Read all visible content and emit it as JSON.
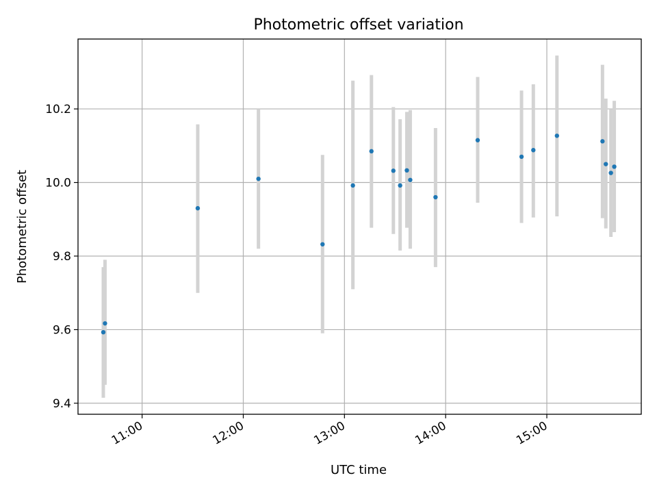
{
  "chart_data": {
    "type": "scatter",
    "title": "Photometric offset variation",
    "xlabel": "UTC time",
    "ylabel": "Photometric offset",
    "xlim": [
      "10:22",
      "15:56"
    ],
    "ylim": [
      9.37,
      10.39
    ],
    "grid": true,
    "x_ticks": [
      "11:00",
      "12:00",
      "13:00",
      "14:00",
      "15:00"
    ],
    "y_ticks": [
      9.4,
      9.6,
      9.8,
      10.0,
      10.2
    ],
    "y_tick_labels": [
      "9.4",
      "9.6",
      "9.8",
      "10.0",
      "10.2"
    ],
    "colors": {
      "point": "#1f77b4",
      "errorbar": "#d3d3d3",
      "grid": "#b0b0b0",
      "axes": "#000000"
    },
    "points": [
      {
        "x": "10:37",
        "y": 9.593,
        "ylow": 9.415,
        "yhigh": 9.77
      },
      {
        "x": "10:38",
        "y": 9.617,
        "ylow": 9.45,
        "yhigh": 9.79
      },
      {
        "x": "11:33",
        "y": 9.93,
        "ylow": 9.7,
        "yhigh": 10.158
      },
      {
        "x": "12:09",
        "y": 10.01,
        "ylow": 9.82,
        "yhigh": 10.2
      },
      {
        "x": "12:47",
        "y": 9.832,
        "ylow": 9.59,
        "yhigh": 10.075
      },
      {
        "x": "13:05",
        "y": 9.992,
        "ylow": 9.71,
        "yhigh": 10.277
      },
      {
        "x": "13:16",
        "y": 10.085,
        "ylow": 9.877,
        "yhigh": 10.292
      },
      {
        "x": "13:29",
        "y": 10.032,
        "ylow": 9.86,
        "yhigh": 10.205
      },
      {
        "x": "13:33",
        "y": 9.992,
        "ylow": 9.815,
        "yhigh": 10.172
      },
      {
        "x": "13:37",
        "y": 10.033,
        "ylow": 9.877,
        "yhigh": 10.192
      },
      {
        "x": "13:39",
        "y": 10.007,
        "ylow": 9.82,
        "yhigh": 10.197
      },
      {
        "x": "13:54",
        "y": 9.96,
        "ylow": 9.77,
        "yhigh": 10.148
      },
      {
        "x": "14:19",
        "y": 10.115,
        "ylow": 9.945,
        "yhigh": 10.287
      },
      {
        "x": "14:45",
        "y": 10.07,
        "ylow": 9.89,
        "yhigh": 10.25
      },
      {
        "x": "14:52",
        "y": 10.088,
        "ylow": 9.905,
        "yhigh": 10.267
      },
      {
        "x": "15:06",
        "y": 10.127,
        "ylow": 9.908,
        "yhigh": 10.345
      },
      {
        "x": "15:33",
        "y": 10.112,
        "ylow": 9.903,
        "yhigh": 10.32
      },
      {
        "x": "15:35",
        "y": 10.05,
        "ylow": 9.875,
        "yhigh": 10.228
      },
      {
        "x": "15:38",
        "y": 10.026,
        "ylow": 9.852,
        "yhigh": 10.2
      },
      {
        "x": "15:40",
        "y": 10.043,
        "ylow": 9.865,
        "yhigh": 10.222
      }
    ]
  }
}
